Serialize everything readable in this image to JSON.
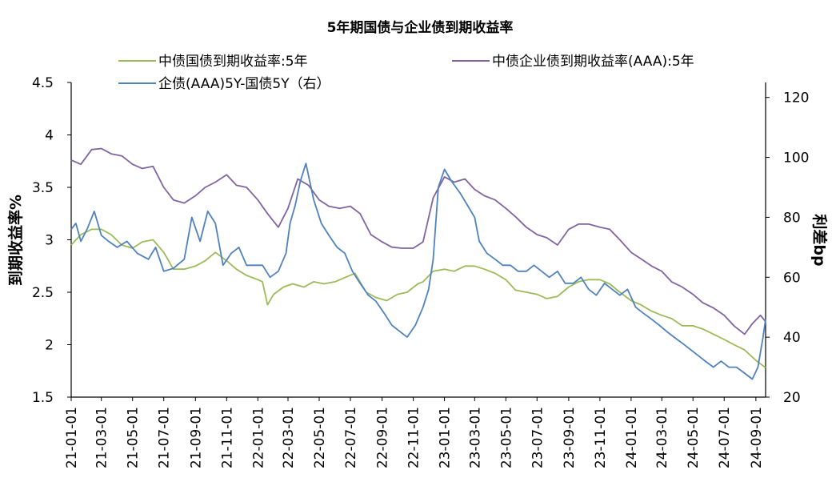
{
  "chart_data": {
    "type": "line",
    "title": "5年期国债与企业债到期收益率",
    "ylabel_left": "到期收益率%",
    "ylabel_right": "利差bp",
    "ylim_left": [
      1.5,
      4.5
    ],
    "yticks_left": [
      "1.5",
      "2",
      "2.5",
      "3",
      "3.5",
      "4",
      "4.5"
    ],
    "ylim_right": [
      20,
      125
    ],
    "yticks_right": [
      "20",
      "40",
      "60",
      "80",
      "100",
      "120"
    ],
    "x_range": [
      "2021-01-01",
      "2024-09-20"
    ],
    "xticks": [
      "21-01-01",
      "21-03-01",
      "21-05-01",
      "21-07-01",
      "21-09-01",
      "21-11-01",
      "22-01-01",
      "22-03-01",
      "22-05-01",
      "22-07-01",
      "22-09-01",
      "22-11-01",
      "23-01-01",
      "23-03-01",
      "23-05-01",
      "23-07-01",
      "23-09-01",
      "23-11-01",
      "24-01-01",
      "24-03-01",
      "24-05-01",
      "24-07-01",
      "24-09-01"
    ],
    "grid": false,
    "legend_position": "top",
    "series": [
      {
        "name": "中债国债到期收益率:5年",
        "axis": "left",
        "color": "#9bbb59",
        "x": [
          "2021-01-01",
          "2021-01-20",
          "2021-02-10",
          "2021-03-01",
          "2021-03-20",
          "2021-04-10",
          "2021-05-01",
          "2021-05-20",
          "2021-06-10",
          "2021-07-01",
          "2021-07-20",
          "2021-08-10",
          "2021-09-01",
          "2021-09-20",
          "2021-10-10",
          "2021-11-01",
          "2021-11-20",
          "2021-12-10",
          "2022-01-01",
          "2022-01-10",
          "2022-01-20",
          "2022-02-01",
          "2022-02-20",
          "2022-03-10",
          "2022-04-01",
          "2022-04-20",
          "2022-05-10",
          "2022-06-01",
          "2022-06-20",
          "2022-07-10",
          "2022-08-01",
          "2022-08-20",
          "2022-09-10",
          "2022-10-01",
          "2022-10-20",
          "2022-11-10",
          "2022-11-20",
          "2022-12-10",
          "2023-01-01",
          "2023-01-20",
          "2023-02-10",
          "2023-03-01",
          "2023-03-20",
          "2023-04-10",
          "2023-05-01",
          "2023-05-20",
          "2023-06-10",
          "2023-07-01",
          "2023-07-20",
          "2023-08-10",
          "2023-09-01",
          "2023-09-20",
          "2023-10-10",
          "2023-11-01",
          "2023-11-20",
          "2023-12-10",
          "2024-01-01",
          "2024-01-20",
          "2024-02-10",
          "2024-03-01",
          "2024-03-20",
          "2024-04-10",
          "2024-05-01",
          "2024-05-20",
          "2024-06-10",
          "2024-07-01",
          "2024-07-20",
          "2024-08-10",
          "2024-09-01",
          "2024-09-20"
        ],
        "values": [
          2.95,
          3.05,
          3.1,
          3.1,
          3.05,
          2.95,
          2.92,
          2.98,
          3.0,
          2.88,
          2.72,
          2.72,
          2.75,
          2.8,
          2.88,
          2.8,
          2.72,
          2.66,
          2.62,
          2.6,
          2.38,
          2.48,
          2.55,
          2.58,
          2.55,
          2.6,
          2.58,
          2.6,
          2.64,
          2.68,
          2.5,
          2.45,
          2.42,
          2.48,
          2.5,
          2.58,
          2.6,
          2.7,
          2.72,
          2.7,
          2.75,
          2.75,
          2.72,
          2.68,
          2.62,
          2.52,
          2.5,
          2.48,
          2.44,
          2.46,
          2.55,
          2.6,
          2.62,
          2.62,
          2.58,
          2.5,
          2.42,
          2.38,
          2.32,
          2.28,
          2.25,
          2.18,
          2.18,
          2.15,
          2.1,
          2.05,
          2.0,
          1.95,
          1.85,
          1.78
        ]
      },
      {
        "name": "中债企业债到期收益率(AAA):5年",
        "axis": "left",
        "color": "#8064a2",
        "x": [
          "2021-01-01",
          "2021-01-20",
          "2021-02-10",
          "2021-03-01",
          "2021-03-20",
          "2021-04-10",
          "2021-05-01",
          "2021-05-20",
          "2021-06-10",
          "2021-07-01",
          "2021-07-20",
          "2021-08-10",
          "2021-09-01",
          "2021-09-20",
          "2021-10-10",
          "2021-11-01",
          "2021-11-20",
          "2021-12-10",
          "2022-01-01",
          "2022-01-20",
          "2022-02-10",
          "2022-03-01",
          "2022-03-20",
          "2022-04-10",
          "2022-05-01",
          "2022-05-20",
          "2022-06-10",
          "2022-07-01",
          "2022-07-20",
          "2022-08-10",
          "2022-09-01",
          "2022-09-20",
          "2022-10-10",
          "2022-11-01",
          "2022-11-20",
          "2022-12-10",
          "2023-01-01",
          "2023-01-20",
          "2023-02-10",
          "2023-03-01",
          "2023-03-20",
          "2023-04-10",
          "2023-05-01",
          "2023-05-20",
          "2023-06-10",
          "2023-07-01",
          "2023-07-20",
          "2023-08-10",
          "2023-09-01",
          "2023-09-20",
          "2023-10-10",
          "2023-11-01",
          "2023-11-20",
          "2023-12-10",
          "2024-01-01",
          "2024-01-20",
          "2024-02-10",
          "2024-03-01",
          "2024-03-20",
          "2024-04-10",
          "2024-05-01",
          "2024-05-20",
          "2024-06-10",
          "2024-07-01",
          "2024-07-20",
          "2024-08-10",
          "2024-08-25",
          "2024-09-10",
          "2024-09-20"
        ],
        "values": [
          3.76,
          3.72,
          3.86,
          3.87,
          3.82,
          3.8,
          3.72,
          3.68,
          3.7,
          3.5,
          3.38,
          3.35,
          3.42,
          3.5,
          3.55,
          3.62,
          3.52,
          3.5,
          3.38,
          3.25,
          3.12,
          3.3,
          3.58,
          3.52,
          3.38,
          3.32,
          3.3,
          3.32,
          3.25,
          3.05,
          2.98,
          2.93,
          2.92,
          2.92,
          2.98,
          3.4,
          3.6,
          3.55,
          3.58,
          3.48,
          3.42,
          3.38,
          3.3,
          3.22,
          3.12,
          3.05,
          3.02,
          2.95,
          3.1,
          3.15,
          3.15,
          3.12,
          3.1,
          3.0,
          2.88,
          2.82,
          2.75,
          2.7,
          2.6,
          2.55,
          2.48,
          2.4,
          2.35,
          2.28,
          2.18,
          2.1,
          2.2,
          2.28,
          2.22
        ]
      },
      {
        "name": "企债(AAA)5Y-国债5Y（右）",
        "axis": "right",
        "color": "#4f81bd",
        "x": [
          "2021-01-01",
          "2021-01-10",
          "2021-01-20",
          "2021-02-01",
          "2021-02-15",
          "2021-03-01",
          "2021-03-15",
          "2021-04-01",
          "2021-04-20",
          "2021-05-10",
          "2021-06-01",
          "2021-06-15",
          "2021-07-01",
          "2021-07-20",
          "2021-08-10",
          "2021-08-25",
          "2021-09-10",
          "2021-09-25",
          "2021-10-10",
          "2021-10-25",
          "2021-11-10",
          "2021-11-25",
          "2021-12-10",
          "2021-12-25",
          "2022-01-10",
          "2022-01-25",
          "2022-02-10",
          "2022-02-25",
          "2022-03-05",
          "2022-03-15",
          "2022-03-25",
          "2022-04-05",
          "2022-04-20",
          "2022-05-05",
          "2022-05-20",
          "2022-06-05",
          "2022-06-20",
          "2022-07-05",
          "2022-07-20",
          "2022-08-05",
          "2022-08-20",
          "2022-09-05",
          "2022-09-20",
          "2022-10-05",
          "2022-10-20",
          "2022-11-05",
          "2022-11-20",
          "2022-12-01",
          "2022-12-10",
          "2022-12-20",
          "2023-01-01",
          "2023-01-15",
          "2023-02-01",
          "2023-02-15",
          "2023-03-01",
          "2023-03-10",
          "2023-03-25",
          "2023-04-10",
          "2023-04-25",
          "2023-05-10",
          "2023-05-25",
          "2023-06-10",
          "2023-06-25",
          "2023-07-10",
          "2023-07-25",
          "2023-08-10",
          "2023-08-25",
          "2023-09-10",
          "2023-09-25",
          "2023-10-10",
          "2023-10-25",
          "2023-11-10",
          "2023-11-25",
          "2023-12-10",
          "2023-12-25",
          "2024-01-10",
          "2024-01-25",
          "2024-02-10",
          "2024-02-25",
          "2024-03-10",
          "2024-03-25",
          "2024-04-10",
          "2024-04-25",
          "2024-05-10",
          "2024-05-25",
          "2024-06-10",
          "2024-06-25",
          "2024-07-10",
          "2024-07-25",
          "2024-08-10",
          "2024-08-25",
          "2024-09-05",
          "2024-09-15",
          "2024-09-20"
        ],
        "values": [
          76,
          78,
          72,
          76,
          82,
          74,
          72,
          70,
          72,
          68,
          66,
          70,
          62,
          63,
          66,
          80,
          72,
          82,
          78,
          64,
          68,
          70,
          64,
          64,
          64,
          60,
          62,
          68,
          78,
          84,
          92,
          98,
          86,
          78,
          74,
          70,
          68,
          62,
          58,
          54,
          52,
          48,
          44,
          42,
          40,
          44,
          50,
          56,
          66,
          90,
          96,
          92,
          88,
          84,
          80,
          72,
          68,
          66,
          64,
          64,
          62,
          62,
          64,
          62,
          60,
          62,
          58,
          58,
          60,
          56,
          54,
          58,
          56,
          54,
          56,
          50,
          48,
          46,
          44,
          42,
          40,
          38,
          36,
          34,
          32,
          30,
          32,
          30,
          30,
          28,
          26,
          30,
          40,
          46
        ]
      }
    ]
  }
}
